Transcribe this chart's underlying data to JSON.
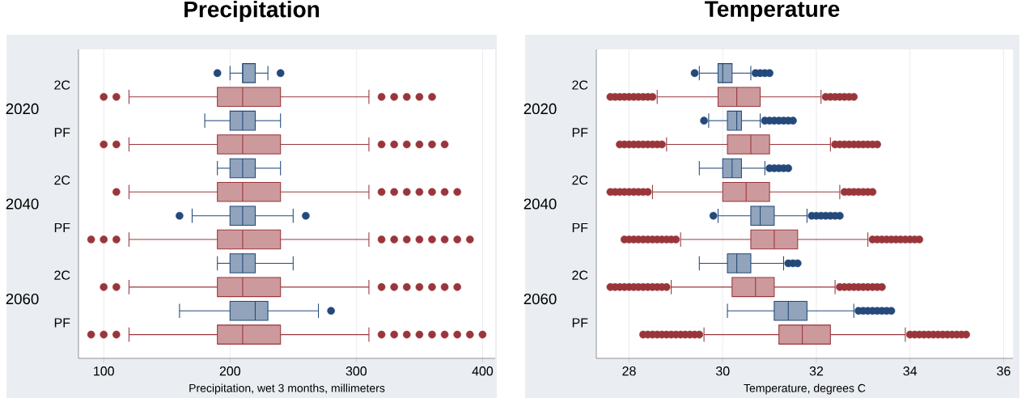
{
  "chart_data": [
    {
      "type": "box",
      "orientation": "horizontal",
      "title": "Precipitation",
      "xlabel": "Precipitation, wet 3 months, millimeters",
      "categories": [
        "2C",
        "PF",
        "2C",
        "PF",
        "2C",
        "PF"
      ],
      "annotations": [
        "2020",
        "2040",
        "2060"
      ],
      "xlim": [
        80,
        410
      ],
      "xticks": [
        100,
        200,
        300,
        400
      ],
      "grid": "x",
      "marker": "circle",
      "series": [
        {
          "color": "#24497a",
          "boxes": [
            {
              "low": 200,
              "q1": 210,
              "median": 210,
              "q3": 220,
              "high": 230,
              "outliers": [
                190,
                240
              ]
            },
            {
              "low": 180,
              "q1": 200,
              "median": 210,
              "q3": 220,
              "high": 240
            },
            {
              "low": 190,
              "q1": 200,
              "median": 210,
              "q3": 220,
              "high": 240
            },
            {
              "low": 170,
              "q1": 200,
              "median": 210,
              "q3": 220,
              "high": 250,
              "outliers": [
                160,
                260
              ]
            },
            {
              "low": 190,
              "q1": 200,
              "median": 210,
              "q3": 220,
              "high": 250
            },
            {
              "low": 160,
              "q1": 200,
              "median": 220,
              "q3": 230,
              "high": 270,
              "outliers": [
                280
              ]
            }
          ]
        },
        {
          "color": "#9a363b",
          "boxes": [
            {
              "low": 120,
              "q1": 190,
              "median": 210,
              "q3": 240,
              "high": 310,
              "outliers": [
                100,
                110,
                320,
                330,
                340,
                350,
                360
              ]
            },
            {
              "low": 120,
              "q1": 190,
              "median": 210,
              "q3": 240,
              "high": 310,
              "outliers": [
                100,
                110,
                320,
                330,
                340,
                350,
                360,
                370
              ]
            },
            {
              "low": 120,
              "q1": 190,
              "median": 210,
              "q3": 240,
              "high": 310,
              "outliers": [
                110,
                320,
                330,
                340,
                350,
                360,
                370,
                380
              ]
            },
            {
              "low": 120,
              "q1": 190,
              "median": 210,
              "q3": 240,
              "high": 310,
              "outliers": [
                90,
                100,
                110,
                320,
                330,
                340,
                350,
                360,
                370,
                380,
                390
              ]
            },
            {
              "low": 120,
              "q1": 190,
              "median": 210,
              "q3": 240,
              "high": 310,
              "outliers": [
                100,
                110,
                320,
                330,
                340,
                350,
                360,
                370,
                380
              ]
            },
            {
              "low": 120,
              "q1": 190,
              "median": 210,
              "q3": 240,
              "high": 310,
              "outliers": [
                90,
                100,
                110,
                320,
                330,
                340,
                350,
                360,
                370,
                380,
                390,
                400
              ]
            }
          ]
        }
      ]
    },
    {
      "type": "box",
      "orientation": "horizontal",
      "title": "Temperature",
      "xlabel": "Temperature, degrees C",
      "categories": [
        "2C",
        "PF",
        "2C",
        "PF",
        "2C",
        "PF"
      ],
      "annotations": [
        "2020",
        "2040",
        "2060"
      ],
      "xlim": [
        27.3,
        36.2
      ],
      "xticks": [
        28,
        30,
        32,
        34,
        36
      ],
      "grid": "x",
      "marker": "circle",
      "series": [
        {
          "color": "#24497a",
          "boxes": [
            {
              "low": 29.5,
              "q1": 29.9,
              "median": 30.0,
              "q3": 30.2,
              "high": 30.6,
              "outliers": [
                29.4,
                30.7,
                30.8,
                30.9,
                31.0
              ]
            },
            {
              "low": 29.7,
              "q1": 30.1,
              "median": 30.3,
              "q3": 30.4,
              "high": 30.8,
              "outliers": [
                29.6,
                30.9,
                31.0,
                31.1,
                31.2,
                31.3,
                31.4,
                31.5
              ]
            },
            {
              "low": 29.5,
              "q1": 30.0,
              "median": 30.2,
              "q3": 30.4,
              "high": 30.9,
              "outliers": [
                31.0,
                31.1,
                31.2,
                31.3,
                31.4
              ]
            },
            {
              "low": 29.9,
              "q1": 30.6,
              "median": 30.8,
              "q3": 31.1,
              "high": 31.8,
              "outliers": [
                29.8,
                31.9,
                32.0,
                32.1,
                32.2,
                32.3,
                32.4,
                32.5
              ]
            },
            {
              "low": 29.5,
              "q1": 30.1,
              "median": 30.3,
              "q3": 30.6,
              "high": 31.3,
              "outliers": [
                31.4,
                31.5,
                31.6
              ]
            },
            {
              "low": 30.1,
              "q1": 31.1,
              "median": 31.4,
              "q3": 31.8,
              "high": 32.8,
              "outliers": [
                32.9,
                33.0,
                33.1,
                33.2,
                33.3,
                33.4,
                33.5,
                33.6
              ]
            }
          ]
        },
        {
          "color": "#9a363b",
          "boxes": [
            {
              "low": 28.6,
              "q1": 29.9,
              "median": 30.3,
              "q3": 30.8,
              "high": 32.1,
              "outliers": [
                27.6,
                27.7,
                27.8,
                27.9,
                28.0,
                28.1,
                28.2,
                28.3,
                28.4,
                28.5,
                32.2,
                32.3,
                32.4,
                32.5,
                32.6,
                32.7,
                32.8
              ]
            },
            {
              "low": 28.8,
              "q1": 30.1,
              "median": 30.6,
              "q3": 31.0,
              "high": 32.3,
              "outliers": [
                27.8,
                27.9,
                28.0,
                28.1,
                28.2,
                28.3,
                28.4,
                28.5,
                28.6,
                28.7,
                32.4,
                32.5,
                32.6,
                32.7,
                32.8,
                32.9,
                33.0,
                33.1,
                33.2,
                33.3
              ]
            },
            {
              "low": 28.5,
              "q1": 30.0,
              "median": 30.5,
              "q3": 31.0,
              "high": 32.5,
              "outliers": [
                27.6,
                27.7,
                27.8,
                27.9,
                28.0,
                28.1,
                28.2,
                28.3,
                28.4,
                32.6,
                32.7,
                32.8,
                32.9,
                33.0,
                33.1,
                33.2
              ]
            },
            {
              "low": 29.1,
              "q1": 30.6,
              "median": 31.1,
              "q3": 31.6,
              "high": 33.1,
              "outliers": [
                27.9,
                28.0,
                28.1,
                28.2,
                28.3,
                28.4,
                28.5,
                28.6,
                28.7,
                28.8,
                28.9,
                29.0,
                33.2,
                33.3,
                33.4,
                33.5,
                33.6,
                33.7,
                33.8,
                33.9,
                34.0,
                34.1,
                34.2
              ]
            },
            {
              "low": 28.9,
              "q1": 30.2,
              "median": 30.7,
              "q3": 31.1,
              "high": 32.4,
              "outliers": [
                27.6,
                27.7,
                27.8,
                27.9,
                28.0,
                28.1,
                28.2,
                28.3,
                28.4,
                28.5,
                28.6,
                28.7,
                28.8,
                32.5,
                32.6,
                32.7,
                32.8,
                32.9,
                33.0,
                33.1,
                33.2,
                33.3,
                33.4
              ]
            },
            {
              "low": 29.6,
              "q1": 31.2,
              "median": 31.7,
              "q3": 32.3,
              "high": 33.9,
              "outliers": [
                28.3,
                28.4,
                28.5,
                28.6,
                28.7,
                28.8,
                28.9,
                29.0,
                29.1,
                29.2,
                29.3,
                29.4,
                29.5,
                34.0,
                34.1,
                34.2,
                34.3,
                34.4,
                34.5,
                34.6,
                34.7,
                34.8,
                34.9,
                35.0,
                35.1,
                35.2
              ]
            }
          ]
        }
      ]
    }
  ]
}
